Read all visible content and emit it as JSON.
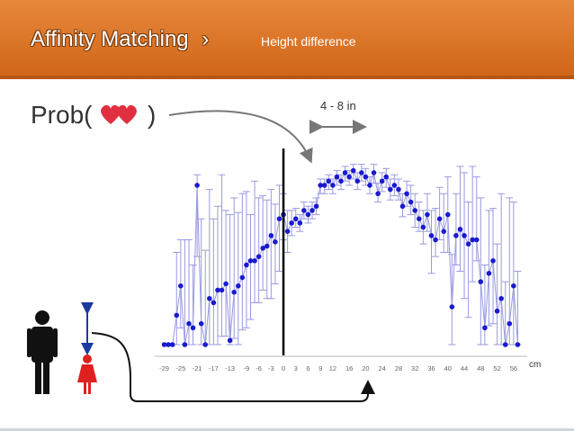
{
  "slide": {
    "title": "Affinity Matching",
    "title_chevron": "›",
    "subtitle": "Height difference",
    "prob_open": "Prob(",
    "prob_close": ")",
    "range_label": "4 - 8 in",
    "unit_label": "cm"
  },
  "colors": {
    "header": "#d97a2b",
    "heart": "#e03040",
    "male": "#111111",
    "female": "#e02020",
    "points": "#1a1ad0",
    "whiskers": "#9a9ae0",
    "arrow": "#1a3aa0"
  },
  "icons": [
    "heart-icon",
    "male-person-icon",
    "female-person-icon",
    "height-arrow-icon"
  ],
  "chart_data": {
    "type": "scatter",
    "x_ticks": [
      -29,
      -25,
      -21,
      -17,
      -13,
      -9,
      -6,
      -3,
      0,
      3,
      6,
      9,
      12,
      16,
      20,
      24,
      28,
      32,
      36,
      40,
      44,
      48,
      52,
      56
    ],
    "x_range": [
      -30,
      58
    ],
    "y_range": [
      0,
      1
    ],
    "reference_line_x": 0,
    "grid": false,
    "series": [
      {
        "x": [
          -29,
          -28,
          -27,
          -26,
          -25,
          -24,
          -23,
          -22,
          -21,
          -20,
          -19,
          -18,
          -17,
          -16,
          -15,
          -14,
          -13,
          -12,
          -11,
          -10,
          -9,
          -8,
          -7,
          -6,
          -5,
          -4,
          -3,
          -2,
          -1,
          0,
          1,
          2,
          3,
          4,
          5,
          6,
          7,
          8,
          9,
          10,
          11,
          12,
          13,
          14,
          15,
          16,
          17,
          18,
          19,
          20,
          21,
          22,
          23,
          24,
          25,
          26,
          27,
          28,
          29,
          30,
          31,
          32,
          33,
          34,
          35,
          36,
          37,
          38,
          39,
          40,
          41,
          42,
          43,
          44,
          45,
          46,
          47,
          48,
          49,
          50,
          51,
          52,
          53,
          54,
          55,
          56,
          57
        ],
        "y": [
          0.0,
          0.0,
          0.0,
          0.14,
          0.28,
          0.0,
          0.1,
          0.08,
          0.76,
          0.1,
          0.0,
          0.22,
          0.2,
          0.26,
          0.26,
          0.29,
          0.02,
          0.25,
          0.28,
          0.32,
          0.38,
          0.4,
          0.4,
          0.42,
          0.46,
          0.47,
          0.52,
          0.49,
          0.6,
          0.62,
          0.54,
          0.58,
          0.6,
          0.58,
          0.64,
          0.62,
          0.64,
          0.66,
          0.76,
          0.76,
          0.78,
          0.76,
          0.8,
          0.78,
          0.82,
          0.8,
          0.83,
          0.78,
          0.82,
          0.8,
          0.76,
          0.82,
          0.72,
          0.78,
          0.8,
          0.74,
          0.76,
          0.74,
          0.66,
          0.72,
          0.68,
          0.64,
          0.6,
          0.56,
          0.62,
          0.52,
          0.5,
          0.6,
          0.54,
          0.62,
          0.18,
          0.52,
          0.55,
          0.52,
          0.48,
          0.5,
          0.5,
          0.3,
          0.08,
          0.34,
          0.4,
          0.16,
          0.22,
          0.0,
          0.1,
          0.28,
          0.0
        ],
        "err_low": [
          0.0,
          0.0,
          0.0,
          0.14,
          0.2,
          0.0,
          0.1,
          0.08,
          0.34,
          0.1,
          0.0,
          0.22,
          0.2,
          0.26,
          0.22,
          0.25,
          0.02,
          0.22,
          0.28,
          0.25,
          0.3,
          0.28,
          0.2,
          0.22,
          0.2,
          0.25,
          0.3,
          0.2,
          0.25,
          0.12,
          0.1,
          0.06,
          0.04,
          0.04,
          0.04,
          0.04,
          0.04,
          0.04,
          0.04,
          0.04,
          0.04,
          0.04,
          0.04,
          0.04,
          0.04,
          0.04,
          0.04,
          0.04,
          0.04,
          0.04,
          0.04,
          0.05,
          0.04,
          0.05,
          0.05,
          0.05,
          0.05,
          0.05,
          0.05,
          0.06,
          0.06,
          0.08,
          0.06,
          0.08,
          0.08,
          0.18,
          0.08,
          0.1,
          0.1,
          0.18,
          0.18,
          0.14,
          0.2,
          0.3,
          0.35,
          0.2,
          0.1,
          0.3,
          0.08,
          0.25,
          0.3,
          0.16,
          0.22,
          0.0,
          0.1,
          0.28,
          0.0
        ],
        "err_high": [
          0.0,
          0.0,
          0.0,
          0.3,
          0.22,
          0.5,
          0.4,
          0.3,
          0.05,
          0.5,
          0.45,
          0.52,
          0.4,
          0.4,
          0.55,
          0.35,
          0.6,
          0.45,
          0.35,
          0.4,
          0.35,
          0.22,
          0.38,
          0.28,
          0.25,
          0.22,
          0.22,
          0.18,
          0.16,
          0.1,
          0.1,
          0.06,
          0.05,
          0.04,
          0.04,
          0.04,
          0.04,
          0.04,
          0.03,
          0.03,
          0.03,
          0.03,
          0.03,
          0.03,
          0.03,
          0.03,
          0.03,
          0.04,
          0.04,
          0.04,
          0.04,
          0.04,
          0.05,
          0.04,
          0.04,
          0.05,
          0.05,
          0.05,
          0.06,
          0.06,
          0.08,
          0.08,
          0.08,
          0.08,
          0.1,
          0.12,
          0.15,
          0.15,
          0.18,
          0.18,
          0.25,
          0.2,
          0.3,
          0.3,
          0.2,
          0.35,
          0.3,
          0.4,
          0.3,
          0.3,
          0.25,
          0.32,
          0.5,
          0.3,
          0.6,
          0.4,
          0.35
        ]
      }
    ]
  }
}
